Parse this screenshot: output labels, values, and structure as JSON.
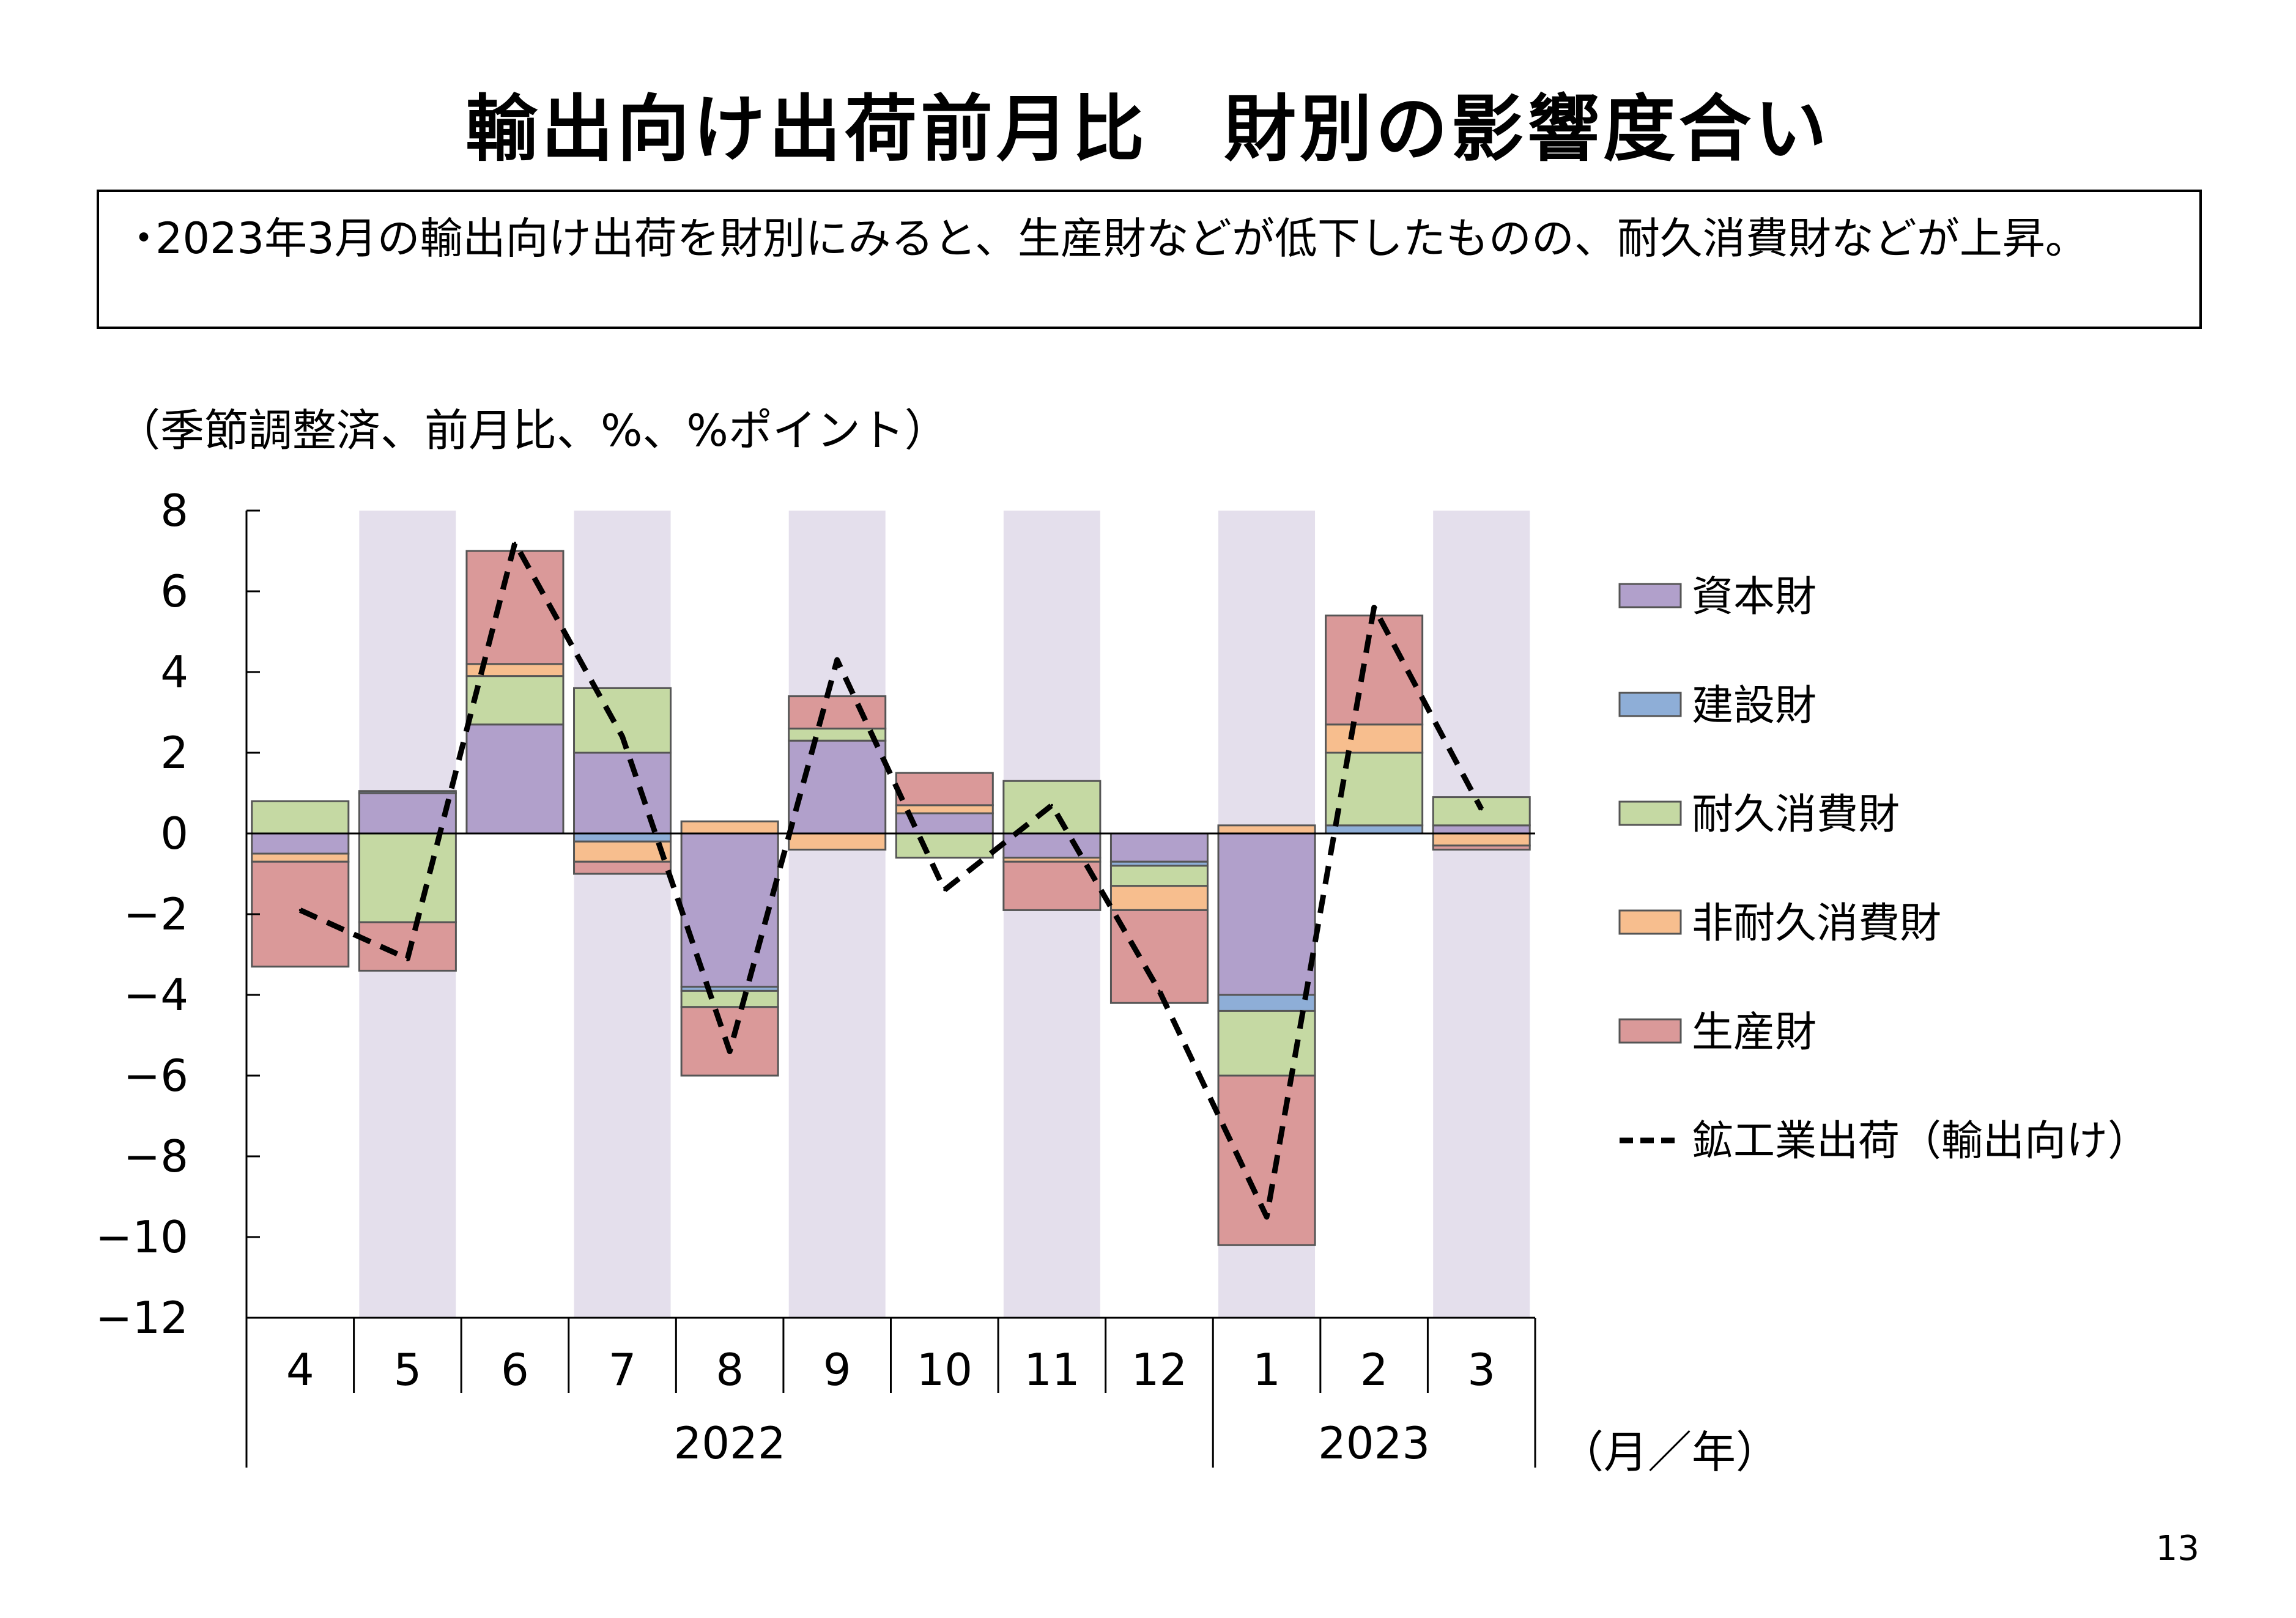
{
  "title": "輸出向け出荷前月比　財別の影響度合い",
  "summary": {
    "bullet": "・",
    "text": "2023年3月の輸出向け出荷を財別にみると、生産財などが低下したものの、耐久消費財などが上昇。"
  },
  "unit_label": "（季節調整済、前月比、%、%ポイント）",
  "page_number": "13",
  "colors": {
    "capital": "#b1a0cb",
    "construction": "#8eaed7",
    "durable": "#c5d9a3",
    "nondurable": "#f7be8e",
    "production": "#da9999",
    "shade": "#e4dfec",
    "line": "#000000"
  },
  "chart_data": {
    "type": "bar",
    "stacked": true,
    "title": "",
    "xlabel": "（月／年）",
    "ylabel": "",
    "ylim": [
      -12,
      8
    ],
    "yticks": [
      8,
      6,
      4,
      2,
      0,
      -2,
      -4,
      -6,
      -8,
      -10,
      -12
    ],
    "ytick_labels": [
      "8",
      "6",
      "4",
      "2",
      "0",
      "−2",
      "−4",
      "−6",
      "−8",
      "−10",
      "−12"
    ],
    "categories": [
      "4",
      "5",
      "6",
      "7",
      "8",
      "9",
      "10",
      "11",
      "12",
      "1",
      "2",
      "3"
    ],
    "year_groups": [
      {
        "label": "2022",
        "start": 0,
        "end": 8
      },
      {
        "label": "2023",
        "start": 9,
        "end": 11
      }
    ],
    "shaded_categories": [
      1,
      3,
      5,
      7,
      9,
      11
    ],
    "grid": false,
    "legend_position": "right",
    "series": [
      {
        "name": "資本財",
        "key": "capital",
        "values": [
          -0.5,
          1.0,
          2.7,
          2.0,
          -3.8,
          2.3,
          0.5,
          -0.6,
          -0.7,
          -4.0,
          0.0,
          0.2
        ]
      },
      {
        "name": "建設財",
        "key": "construction",
        "values": [
          0.0,
          0.05,
          0.0,
          -0.2,
          -0.1,
          0.0,
          0.0,
          0.0,
          -0.1,
          -0.4,
          0.2,
          0.0
        ]
      },
      {
        "name": "耐久消費財",
        "key": "durable",
        "values": [
          0.8,
          -2.2,
          1.2,
          1.6,
          -0.4,
          0.3,
          -0.6,
          1.3,
          -0.5,
          -1.6,
          1.8,
          0.7
        ]
      },
      {
        "name": "非耐久消費財",
        "key": "nondurable",
        "values": [
          -0.2,
          0.0,
          0.3,
          -0.5,
          0.3,
          -0.4,
          0.2,
          -0.1,
          -0.6,
          0.2,
          0.7,
          -0.3
        ]
      },
      {
        "name": "生産財",
        "key": "production",
        "values": [
          -2.6,
          -1.2,
          2.8,
          -0.3,
          -1.7,
          0.8,
          0.8,
          -1.2,
          -2.3,
          -4.2,
          2.7,
          -0.1
        ]
      }
    ],
    "line": {
      "name": "鉱工業出荷（輸出向け）",
      "values": [
        -1.9,
        -3.1,
        7.2,
        2.4,
        -5.4,
        4.3,
        -1.4,
        0.7,
        -3.9,
        -9.5,
        5.6,
        0.6
      ]
    }
  }
}
